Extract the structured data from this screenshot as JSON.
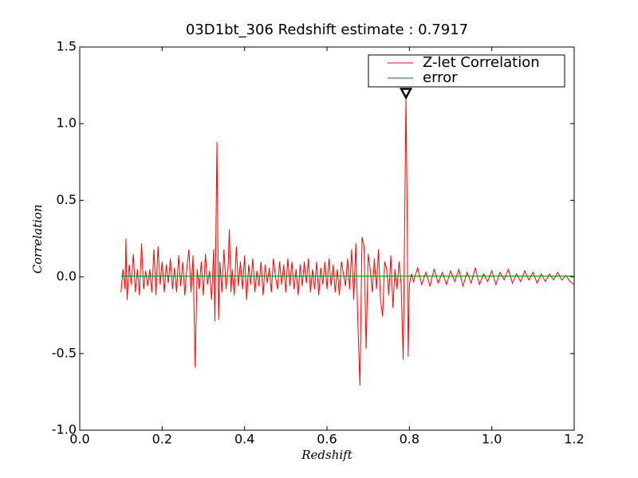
{
  "chart_data": {
    "type": "line",
    "title": "03D1bt_306 Redshift estimate : 0.7917",
    "xlabel": "Redshift",
    "ylabel": "Correlation",
    "xlim": [
      0,
      1.2
    ],
    "ylim": [
      -1,
      1.5
    ],
    "xticks": [
      {
        "value": 0,
        "label": "0.0"
      },
      0.2,
      0.4,
      0.6,
      0.8,
      {
        "value": 1,
        "label": "1.0"
      },
      1.2
    ],
    "yticks": [
      {
        "value": 1.5,
        "label": "1.5"
      },
      {
        "value": 1,
        "label": "1.0"
      },
      0.5,
      {
        "value": 0,
        "label": "0.0"
      },
      -0.5,
      {
        "value": -1,
        "label": "-1.0"
      }
    ],
    "legend": "upper right",
    "marker": {
      "x": 0.7917,
      "y": 1.17,
      "color": "#000000"
    },
    "series": [
      {
        "name": "Z-let Correlation",
        "color": "#ff0000",
        "x": [
          0.1,
          0.105,
          0.11,
          0.112,
          0.115,
          0.12,
          0.125,
          0.13,
          0.135,
          0.14,
          0.145,
          0.15,
          0.155,
          0.16,
          0.165,
          0.17,
          0.175,
          0.18,
          0.185,
          0.19,
          0.195,
          0.2,
          0.205,
          0.21,
          0.215,
          0.22,
          0.225,
          0.23,
          0.235,
          0.24,
          0.245,
          0.25,
          0.255,
          0.26,
          0.265,
          0.27,
          0.275,
          0.28,
          0.285,
          0.29,
          0.295,
          0.3,
          0.305,
          0.31,
          0.315,
          0.32,
          0.325,
          0.328,
          0.333,
          0.337,
          0.34,
          0.345,
          0.35,
          0.355,
          0.36,
          0.363,
          0.367,
          0.37,
          0.375,
          0.38,
          0.385,
          0.39,
          0.395,
          0.4,
          0.405,
          0.41,
          0.415,
          0.42,
          0.425,
          0.43,
          0.435,
          0.44,
          0.445,
          0.45,
          0.455,
          0.46,
          0.465,
          0.47,
          0.475,
          0.48,
          0.485,
          0.49,
          0.495,
          0.5,
          0.505,
          0.51,
          0.515,
          0.52,
          0.525,
          0.53,
          0.535,
          0.54,
          0.545,
          0.55,
          0.555,
          0.56,
          0.565,
          0.57,
          0.575,
          0.58,
          0.585,
          0.59,
          0.595,
          0.6,
          0.605,
          0.61,
          0.615,
          0.62,
          0.625,
          0.63,
          0.635,
          0.64,
          0.645,
          0.65,
          0.655,
          0.66,
          0.665,
          0.67,
          0.675,
          0.68,
          0.685,
          0.69,
          0.695,
          0.7,
          0.705,
          0.71,
          0.715,
          0.72,
          0.725,
          0.73,
          0.735,
          0.74,
          0.745,
          0.75,
          0.755,
          0.76,
          0.765,
          0.77,
          0.775,
          0.78,
          0.785,
          0.788,
          0.7917,
          0.795,
          0.797,
          0.8,
          0.805,
          0.81,
          0.82,
          0.83,
          0.84,
          0.85,
          0.86,
          0.87,
          0.88,
          0.89,
          0.9,
          0.91,
          0.92,
          0.93,
          0.94,
          0.95,
          0.96,
          0.97,
          0.98,
          0.99,
          1.0,
          1.01,
          1.02,
          1.03,
          1.04,
          1.05,
          1.06,
          1.07,
          1.08,
          1.09,
          1.1,
          1.11,
          1.12,
          1.13,
          1.14,
          1.15,
          1.16,
          1.17,
          1.18,
          1.19,
          1.2
        ],
        "values": [
          -0.1,
          0.05,
          -0.08,
          0.25,
          -0.15,
          0.08,
          -0.05,
          0.15,
          -0.1,
          0.05,
          -0.12,
          0.22,
          -0.08,
          0.04,
          -0.06,
          0.05,
          -0.1,
          0.18,
          -0.12,
          0.2,
          -0.05,
          0.1,
          -0.1,
          0.08,
          -0.04,
          0.12,
          -0.08,
          0.06,
          -0.1,
          0.14,
          -0.06,
          0.1,
          -0.12,
          0.06,
          0.18,
          -0.1,
          0.14,
          -0.59,
          0.05,
          -0.08,
          0.1,
          -0.12,
          0.15,
          -0.05,
          0.04,
          -0.15,
          0.18,
          -0.29,
          0.88,
          -0.28,
          0.1,
          -0.1,
          0.18,
          -0.08,
          0.06,
          0.31,
          -0.1,
          0.05,
          -0.12,
          0.2,
          -0.06,
          0.1,
          -0.08,
          0.14,
          -0.15,
          0.08,
          -0.05,
          0.12,
          -0.1,
          0.04,
          -0.06,
          0.1,
          -0.12,
          0.08,
          -0.04,
          0.06,
          -0.1,
          0.12,
          0,
          -0.08,
          0.1,
          -0.05,
          0.08,
          -0.1,
          0.12,
          -0.06,
          0.1,
          -0.08,
          0.05,
          -0.12,
          0.08,
          -0.06,
          0.1,
          -0.04,
          0.12,
          -0.1,
          0.05,
          -0.08,
          0.1,
          -0.12,
          0.06,
          -0.05,
          0.1,
          -0.08,
          0.12,
          -0.06,
          0.08,
          -0.1,
          0.05,
          -0.12,
          0.1,
          0.02,
          -0.06,
          0.12,
          -0.08,
          0.18,
          -0.15,
          0.22,
          -0.3,
          -0.71,
          0.26,
          0.2,
          -0.47,
          0.15,
          0.05,
          -0.1,
          0.12,
          -0.08,
          0.18,
          -0.15,
          -0.26,
          0.1,
          0.05,
          -0.12,
          0.14,
          -0.2,
          0.05,
          -0.08,
          0.1,
          -0.05,
          -0.54,
          0.2,
          1.17,
          0.3,
          -0.52,
          -0.05,
          0.02,
          -0.03,
          0.06,
          -0.05,
          0.03,
          -0.06,
          0.05,
          -0.04,
          0.03,
          -0.05,
          0.04,
          -0.03,
          0.05,
          -0.06,
          0.03,
          -0.04,
          0.06,
          -0.05,
          0.02,
          -0.03,
          0.04,
          -0.05,
          0.03,
          -0.02,
          0.05,
          -0.04,
          0.02,
          -0.03,
          0.04,
          -0.02,
          0.03,
          -0.04,
          0.02,
          -0.03,
          0.02,
          -0.02,
          0.03,
          -0.02,
          0.01,
          -0.03,
          -0.05
        ]
      },
      {
        "name": "error",
        "color": "#008000",
        "x": [
          0.1,
          1.2
        ],
        "values": [
          0.005,
          0.005
        ]
      }
    ]
  }
}
